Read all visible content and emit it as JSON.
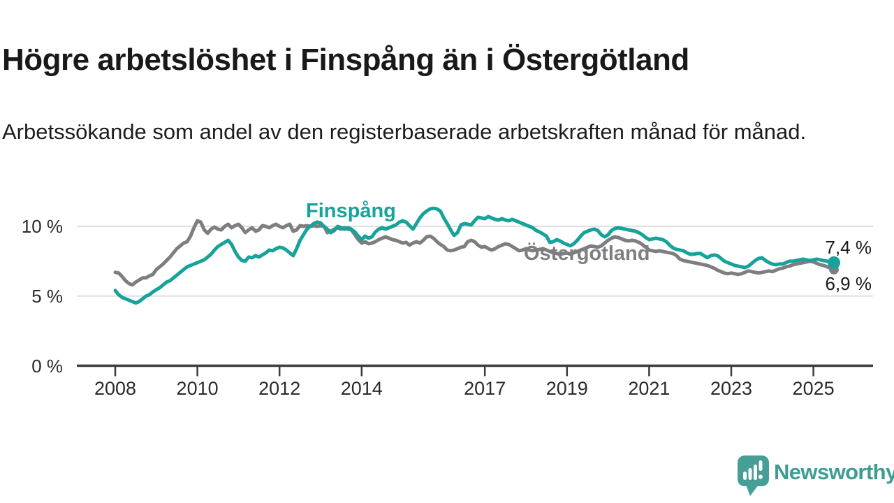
{
  "header": {
    "title": "Högre arbetslöshet i Finspång än i Östergötland",
    "subtitle": "Arbetssökande som andel av den registerbaserade arbetskraften månad för månad."
  },
  "chart_data": {
    "type": "line",
    "title": "Högre arbetslöshet i Finspång än i Östergötland",
    "unit": "%",
    "x_start": 2008.0,
    "x_step_months": 1,
    "x_end": 2025.5,
    "ylim": [
      0,
      12.5
    ],
    "grid": "horizontal",
    "grid_color": "#e0e0e0",
    "axis_color": "#3c3c3c",
    "yticks": [
      {
        "value": 0,
        "label": "0 %"
      },
      {
        "value": 5,
        "label": "5 %"
      },
      {
        "value": 10,
        "label": "10 %"
      }
    ],
    "xticks": [
      {
        "value": 2008,
        "label": "2008"
      },
      {
        "value": 2010,
        "label": "2010"
      },
      {
        "value": 2012,
        "label": "2012"
      },
      {
        "value": 2014,
        "label": "2014"
      },
      {
        "value": 2017,
        "label": "2017"
      },
      {
        "value": 2019,
        "label": "2019"
      },
      {
        "value": 2021,
        "label": "2021"
      },
      {
        "value": 2023,
        "label": "2023"
      },
      {
        "value": 2025,
        "label": "2025"
      }
    ],
    "series": [
      {
        "id": "finspang",
        "name": "Finspång",
        "color": "#17a29a",
        "end_label": "7,4 %",
        "end_value": 7.4,
        "values": [
          5.4,
          5.1,
          4.9,
          4.8,
          4.7,
          4.6,
          4.5,
          4.6,
          4.8,
          5.0,
          5.1,
          5.3,
          5.45,
          5.6,
          5.8,
          6.0,
          6.1,
          6.3,
          6.5,
          6.7,
          6.9,
          7.1,
          7.2,
          7.3,
          7.4,
          7.5,
          7.6,
          7.8,
          8.0,
          8.3,
          8.55,
          8.7,
          8.85,
          9.0,
          8.7,
          8.2,
          7.8,
          7.55,
          7.5,
          7.8,
          7.75,
          7.9,
          7.8,
          7.95,
          8.1,
          8.3,
          8.25,
          8.4,
          8.5,
          8.45,
          8.3,
          8.1,
          7.9,
          8.4,
          9.0,
          9.4,
          9.8,
          10.0,
          10.2,
          10.3,
          10.25,
          10.0,
          9.8,
          9.55,
          9.7,
          10.0,
          9.9,
          9.8,
          9.9,
          9.8,
          9.6,
          9.3,
          9.05,
          9.3,
          9.15,
          9.25,
          9.6,
          9.8,
          9.9,
          9.8,
          9.9,
          10.0,
          10.1,
          10.3,
          10.4,
          10.3,
          10.05,
          9.8,
          10.2,
          10.6,
          10.9,
          11.1,
          11.25,
          11.3,
          11.25,
          11.1,
          10.6,
          10.2,
          9.75,
          9.35,
          9.55,
          10.1,
          10.2,
          10.15,
          10.1,
          10.4,
          10.65,
          10.6,
          10.55,
          10.7,
          10.6,
          10.5,
          10.45,
          10.55,
          10.45,
          10.4,
          10.5,
          10.4,
          10.3,
          10.2,
          10.1,
          10.0,
          9.9,
          9.7,
          9.6,
          9.45,
          9.3,
          8.85,
          8.9,
          9.05,
          8.95,
          8.8,
          8.7,
          8.6,
          8.75,
          9.0,
          9.3,
          9.55,
          9.65,
          9.75,
          9.8,
          9.7,
          9.4,
          9.25,
          9.4,
          9.7,
          9.85,
          9.9,
          9.85,
          9.8,
          9.75,
          9.7,
          9.65,
          9.55,
          9.4,
          9.2,
          9.05,
          9.1,
          9.15,
          9.1,
          9.05,
          8.9,
          8.65,
          8.45,
          8.35,
          8.3,
          8.25,
          8.1,
          8.0,
          8.0,
          8.05,
          8.05,
          7.9,
          7.75,
          7.9,
          7.95,
          7.9,
          7.7,
          7.5,
          7.4,
          7.3,
          7.2,
          7.15,
          7.1,
          7.05,
          7.15,
          7.35,
          7.55,
          7.7,
          7.75,
          7.55,
          7.4,
          7.3,
          7.25,
          7.3,
          7.3,
          7.4,
          7.5,
          7.5,
          7.55,
          7.6,
          7.65,
          7.6,
          7.55,
          7.6,
          7.65,
          7.6,
          7.55,
          7.5,
          7.45,
          7.4
        ]
      },
      {
        "id": "ostergotland",
        "name": "Östergötland",
        "color": "#7e7e81",
        "end_label": "6,9 %",
        "end_value": 6.9,
        "values": [
          6.7,
          6.65,
          6.4,
          6.1,
          5.9,
          5.8,
          6.0,
          6.15,
          6.3,
          6.3,
          6.45,
          6.55,
          6.9,
          7.1,
          7.3,
          7.55,
          7.8,
          8.1,
          8.4,
          8.6,
          8.8,
          8.9,
          9.3,
          9.9,
          10.4,
          10.3,
          9.75,
          9.5,
          9.8,
          9.95,
          9.8,
          9.75,
          10.0,
          10.15,
          9.9,
          10.05,
          10.15,
          9.9,
          9.55,
          9.75,
          9.9,
          9.65,
          9.75,
          10.05,
          10.0,
          9.9,
          10.05,
          10.15,
          10.0,
          9.9,
          10.05,
          10.15,
          9.65,
          9.75,
          10.05,
          10.0,
          10.05,
          10.0,
          10.05,
          10.0,
          10.05,
          10.0,
          9.55,
          9.65,
          9.8,
          9.9,
          9.8,
          9.9,
          9.8,
          9.75,
          9.4,
          9.05,
          8.8,
          8.9,
          8.75,
          8.8,
          8.9,
          9.05,
          9.15,
          9.25,
          9.15,
          9.05,
          9.0,
          8.9,
          8.8,
          8.85,
          8.65,
          8.8,
          8.9,
          8.8,
          9.0,
          9.25,
          9.3,
          9.15,
          8.9,
          8.7,
          8.55,
          8.3,
          8.25,
          8.3,
          8.4,
          8.5,
          8.55,
          8.9,
          9.0,
          8.9,
          8.65,
          8.5,
          8.55,
          8.4,
          8.3,
          8.4,
          8.55,
          8.65,
          8.75,
          8.7,
          8.55,
          8.4,
          8.25,
          8.3,
          8.4,
          8.3,
          8.25,
          8.3,
          8.35,
          8.4,
          8.3,
          8.2,
          8.1,
          8.05,
          8.0,
          8.05,
          8.1,
          8.0,
          8.1,
          8.2,
          8.3,
          8.4,
          8.5,
          8.6,
          8.55,
          8.5,
          8.6,
          8.8,
          9.0,
          9.15,
          9.25,
          9.2,
          9.1,
          9.0,
          8.95,
          9.0,
          8.95,
          8.85,
          8.7,
          8.5,
          8.3,
          8.25,
          8.2,
          8.25,
          8.2,
          8.15,
          8.1,
          8.05,
          7.9,
          7.65,
          7.55,
          7.5,
          7.45,
          7.4,
          7.35,
          7.3,
          7.25,
          7.2,
          7.1,
          7.0,
          6.85,
          6.75,
          6.65,
          6.6,
          6.65,
          6.6,
          6.55,
          6.6,
          6.7,
          6.8,
          6.75,
          6.7,
          6.65,
          6.7,
          6.75,
          6.8,
          6.75,
          6.85,
          6.95,
          7.0,
          7.1,
          7.15,
          7.25,
          7.3,
          7.35,
          7.4,
          7.45,
          7.5,
          7.45,
          7.35,
          7.25,
          7.2,
          7.1,
          7.0,
          6.9
        ]
      }
    ]
  },
  "footer": {
    "brand": "Newsworthy",
    "brand_color": "#3d9c94",
    "logo_color": "#479e97",
    "logo_icon": "bar-chart-speech-bubble"
  }
}
